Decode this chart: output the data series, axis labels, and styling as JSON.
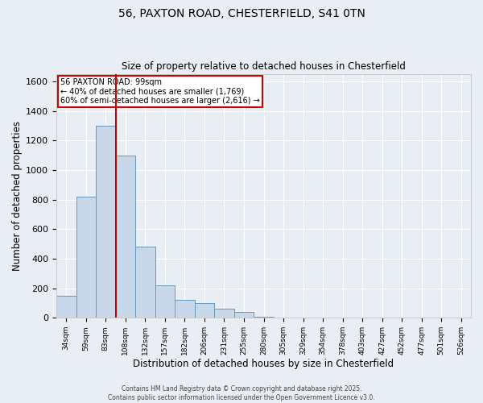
{
  "title_line1": "56, PAXTON ROAD, CHESTERFIELD, S41 0TN",
  "title_line2": "Size of property relative to detached houses in Chesterfield",
  "xlabel": "Distribution of detached houses by size in Chesterfield",
  "ylabel": "Number of detached properties",
  "bin_labels": [
    "34sqm",
    "59sqm",
    "83sqm",
    "108sqm",
    "132sqm",
    "157sqm",
    "182sqm",
    "206sqm",
    "231sqm",
    "255sqm",
    "280sqm",
    "305sqm",
    "329sqm",
    "354sqm",
    "378sqm",
    "403sqm",
    "427sqm",
    "452sqm",
    "477sqm",
    "501sqm",
    "526sqm"
  ],
  "bar_heights": [
    150,
    820,
    1300,
    1100,
    480,
    220,
    120,
    100,
    60,
    40,
    8,
    3,
    2,
    2,
    1,
    1,
    1,
    1,
    1,
    1,
    1
  ],
  "bar_color": "#c8d8e8",
  "bar_edge_color": "#6699bb",
  "red_line_color": "#cc0000",
  "annotation_title": "56 PAXTON ROAD: 99sqm",
  "annotation_line1": "← 40% of detached houses are smaller (1,769)",
  "annotation_line2": "60% of semi-detached houses are larger (2,616) →",
  "annotation_box_color": "#ffffff",
  "annotation_box_edge": "#cc0000",
  "ylim": [
    0,
    1650
  ],
  "yticks": [
    0,
    200,
    400,
    600,
    800,
    1000,
    1200,
    1400,
    1600
  ],
  "background_color": "#e8eef4",
  "grid_color": "#ffffff",
  "footer1": "Contains HM Land Registry data © Crown copyright and database right 2025.",
  "footer2": "Contains public sector information licensed under the Open Government Licence v3.0."
}
